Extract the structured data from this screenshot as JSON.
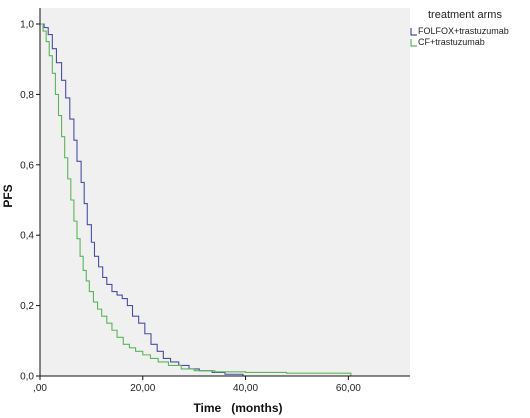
{
  "chart_data": {
    "type": "line",
    "title": "",
    "xlabel": "Time   (months)",
    "ylabel": "PFS",
    "xlim": [
      0,
      72
    ],
    "ylim": [
      0,
      1
    ],
    "x_ticks": [
      ",00",
      "20,00",
      "40,00",
      "60,00"
    ],
    "y_ticks": [
      "0,0",
      "0,2",
      "0,4",
      "0,6",
      "0,8",
      "1,0"
    ],
    "grid": false,
    "step": true,
    "plot_background": "#f0f0f0",
    "legend": {
      "title": "treatment arms",
      "placement": "right"
    },
    "series": [
      {
        "name": "FOLFOX+trastuzumab",
        "color": "#4a4ea3",
        "x": [
          0,
          0.8,
          1.6,
          2.4,
          3.2,
          4.2,
          5.0,
          5.8,
          6.6,
          7.2,
          8.0,
          8.6,
          9.2,
          10.0,
          10.6,
          11.4,
          12.2,
          13.0,
          14.0,
          15.0,
          16.0,
          17.0,
          18.0,
          19.2,
          20.4,
          21.6,
          22.8,
          24.0,
          25.4,
          27.0,
          29.0,
          31.0,
          33.5,
          36.0,
          39.5
        ],
        "y": [
          1.0,
          0.99,
          0.97,
          0.93,
          0.89,
          0.84,
          0.79,
          0.73,
          0.67,
          0.61,
          0.55,
          0.49,
          0.43,
          0.38,
          0.34,
          0.31,
          0.28,
          0.26,
          0.24,
          0.23,
          0.22,
          0.2,
          0.17,
          0.15,
          0.12,
          0.09,
          0.07,
          0.05,
          0.04,
          0.03,
          0.02,
          0.015,
          0.01,
          0.005,
          0.0
        ]
      },
      {
        "name": "CF+trastuzumab",
        "color": "#5bb55b",
        "x": [
          0,
          0.6,
          1.2,
          1.8,
          2.4,
          3.0,
          3.6,
          4.2,
          4.8,
          5.4,
          6.0,
          6.6,
          7.2,
          7.8,
          8.4,
          9.0,
          9.6,
          10.4,
          11.2,
          12.0,
          13.0,
          14.0,
          15.0,
          16.2,
          17.4,
          18.6,
          20.0,
          21.5,
          23.0,
          25.0,
          27.5,
          30.0,
          34.0,
          40.0,
          48.0,
          60.5
        ],
        "y": [
          1.0,
          0.98,
          0.95,
          0.91,
          0.86,
          0.8,
          0.74,
          0.68,
          0.62,
          0.56,
          0.5,
          0.44,
          0.39,
          0.34,
          0.3,
          0.27,
          0.24,
          0.21,
          0.19,
          0.17,
          0.15,
          0.13,
          0.11,
          0.09,
          0.08,
          0.07,
          0.06,
          0.05,
          0.04,
          0.03,
          0.02,
          0.015,
          0.012,
          0.01,
          0.008,
          0.0
        ]
      }
    ]
  }
}
